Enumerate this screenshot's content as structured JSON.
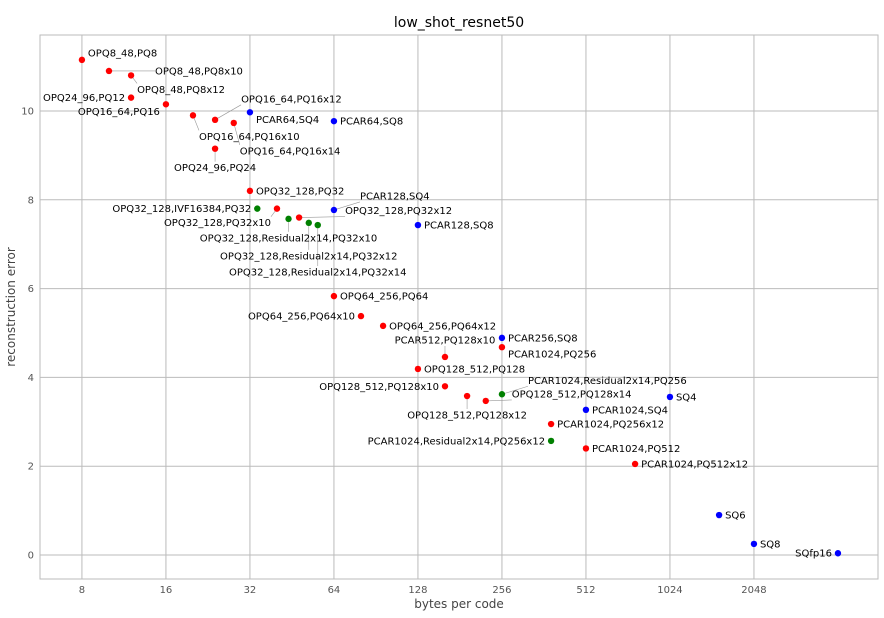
{
  "chart_data": {
    "type": "scatter",
    "title": "low_shot_resnet50",
    "xlabel": "bytes per code",
    "ylabel": "reconstruction error",
    "xscale": "log2",
    "xlim": [
      5.66,
      5700
    ],
    "ylim": [
      -0.54,
      11.71
    ],
    "xticks": [
      8,
      16,
      32,
      64,
      128,
      256,
      512,
      1024,
      2048
    ],
    "yticks": [
      0,
      2,
      4,
      6,
      8,
      10
    ],
    "grid": true,
    "colors": {
      "red": "#ff0000",
      "green": "#008000",
      "blue": "#0000ff"
    },
    "points": [
      {
        "label": "OPQ8_48,PQ8",
        "x": 8,
        "y": 11.15,
        "color": "red"
      },
      {
        "label": "OPQ8_48,PQ8x10",
        "x": 10,
        "y": 10.9,
        "color": "red"
      },
      {
        "label": "OPQ8_48,PQ8x12",
        "x": 12,
        "y": 10.8,
        "color": "red"
      },
      {
        "label": "OPQ24_96,PQ12",
        "x": 12,
        "y": 10.3,
        "color": "red"
      },
      {
        "label": "OPQ16_64,PQ16",
        "x": 16,
        "y": 10.15,
        "color": "red"
      },
      {
        "label": "OPQ16_64,PQ16x10",
        "x": 20,
        "y": 9.9,
        "color": "red"
      },
      {
        "label": "OPQ16_64,PQ16x12",
        "x": 24,
        "y": 9.8,
        "color": "red"
      },
      {
        "label": "OPQ16_64,PQ16x14",
        "x": 28,
        "y": 9.73,
        "color": "red"
      },
      {
        "label": "PCAR64,SQ4",
        "x": 32,
        "y": 9.97,
        "color": "blue"
      },
      {
        "label": "OPQ24_96,PQ24",
        "x": 24,
        "y": 9.15,
        "color": "red"
      },
      {
        "label": "OPQ32_128,PQ32",
        "x": 32,
        "y": 8.2,
        "color": "red"
      },
      {
        "label": "OPQ32_128,IVF16384,PQ32",
        "x": 34,
        "y": 7.8,
        "color": "green"
      },
      {
        "label": "OPQ32_128,PQ32x10",
        "x": 40,
        "y": 7.8,
        "color": "red"
      },
      {
        "label": "OPQ32_128,Residual2x14,PQ32x10",
        "x": 44,
        "y": 7.57,
        "color": "green"
      },
      {
        "label": "OPQ32_128,PQ32x12",
        "x": 48,
        "y": 7.6,
        "color": "red"
      },
      {
        "label": "OPQ32_128,Residual2x14,PQ32x12",
        "x": 52,
        "y": 7.48,
        "color": "green"
      },
      {
        "label": "OPQ32_128,Residual2x14,PQ32x14",
        "x": 56,
        "y": 7.43,
        "color": "green"
      },
      {
        "label": "PCAR128,SQ4",
        "x": 64,
        "y": 7.77,
        "color": "blue"
      },
      {
        "label": "PCAR64,SQ8",
        "x": 64,
        "y": 9.77,
        "color": "blue"
      },
      {
        "label": "PCAR128,SQ8",
        "x": 128,
        "y": 7.43,
        "color": "blue"
      },
      {
        "label": "OPQ64_256,PQ64",
        "x": 64,
        "y": 5.83,
        "color": "red"
      },
      {
        "label": "OPQ64_256,PQ64x10",
        "x": 80,
        "y": 5.38,
        "color": "red"
      },
      {
        "label": "OPQ64_256,PQ64x12",
        "x": 96,
        "y": 5.16,
        "color": "red"
      },
      {
        "label": "OPQ128_512,PQ128",
        "x": 128,
        "y": 4.19,
        "color": "red"
      },
      {
        "label": "PCAR512,PQ128x10",
        "x": 160,
        "y": 4.46,
        "color": "red"
      },
      {
        "label": "OPQ128_512,PQ128x10",
        "x": 160,
        "y": 3.8,
        "color": "red"
      },
      {
        "label": "OPQ128_512,PQ128x12",
        "x": 192,
        "y": 3.58,
        "color": "red"
      },
      {
        "label": "OPQ128_512,PQ128x14",
        "x": 224,
        "y": 3.47,
        "color": "red"
      },
      {
        "label": "PCAR256,SQ8",
        "x": 256,
        "y": 4.89,
        "color": "blue"
      },
      {
        "label": "PCAR1024,PQ256",
        "x": 256,
        "y": 4.68,
        "color": "red"
      },
      {
        "label": "PCAR1024,Residual2x14,PQ256",
        "x": 256,
        "y": 3.62,
        "color": "green"
      },
      {
        "label": "PCAR1024,PQ256x12",
        "x": 384,
        "y": 2.95,
        "color": "red"
      },
      {
        "label": "PCAR1024,Residual2x14,PQ256x12",
        "x": 384,
        "y": 2.57,
        "color": "green"
      },
      {
        "label": "PCAR1024,SQ4",
        "x": 512,
        "y": 3.27,
        "color": "blue"
      },
      {
        "label": "PCAR1024,PQ512",
        "x": 512,
        "y": 2.4,
        "color": "red"
      },
      {
        "label": "SQ4",
        "x": 1024,
        "y": 3.56,
        "color": "blue"
      },
      {
        "label": "PCAR1024,PQ512x12",
        "x": 768,
        "y": 2.05,
        "color": "red"
      },
      {
        "label": "SQ6",
        "x": 1536,
        "y": 0.9,
        "color": "blue"
      },
      {
        "label": "SQ8",
        "x": 2048,
        "y": 0.25,
        "color": "blue"
      },
      {
        "label": "SQfp16",
        "x": 4096,
        "y": 0.04,
        "color": "blue"
      }
    ]
  }
}
